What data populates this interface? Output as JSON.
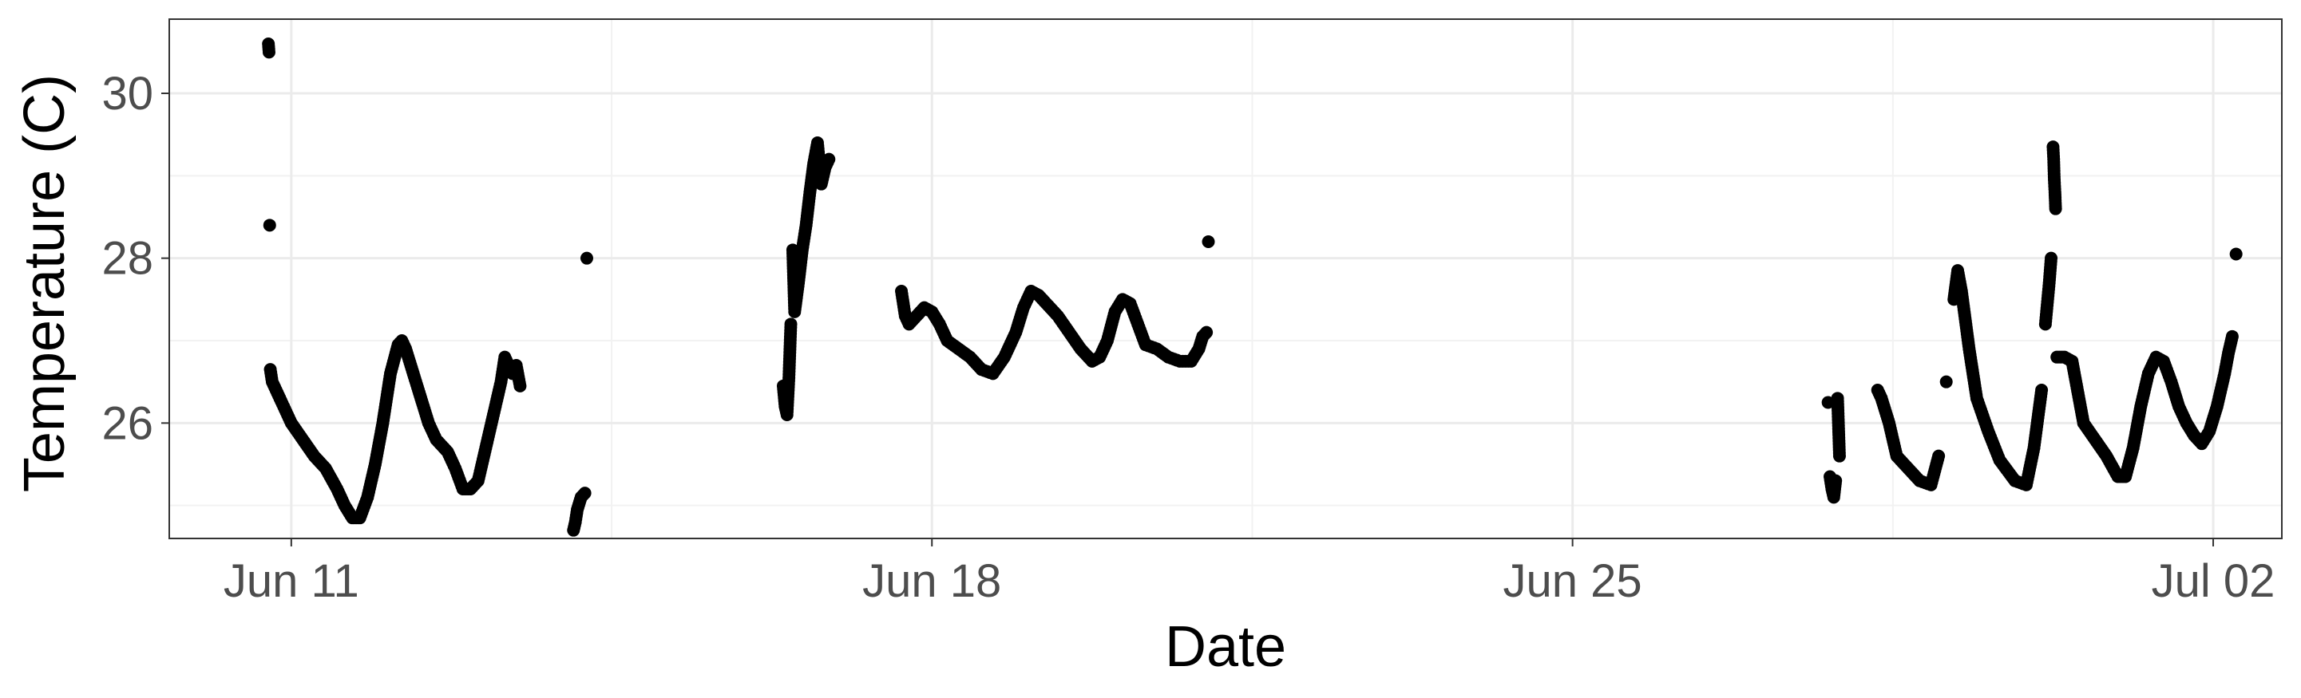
{
  "chart_data": {
    "type": "scatter",
    "title": "",
    "xlabel": "Date",
    "ylabel": "Temperature (C)",
    "x_ticks": [
      {
        "date": "2023-06-11",
        "label": "Jun 11"
      },
      {
        "date": "2023-06-18",
        "label": "Jun 18"
      },
      {
        "date": "2023-06-25",
        "label": "Jun 25"
      },
      {
        "date": "2023-07-02",
        "label": "Jul 02"
      }
    ],
    "y_ticks": [
      26,
      28,
      30
    ],
    "xlim": [
      "2023-06-09T16:00",
      "2023-07-02T18:00"
    ],
    "ylim": [
      24.6,
      30.9
    ],
    "grid": true,
    "legend": "none",
    "point_color": "#000000",
    "series": [
      {
        "points": [
          [
            "2023-06-10T18:00",
            30.6
          ],
          [
            "2023-06-10T18:10",
            30.5
          ],
          [
            "2023-06-10T18:20",
            28.4
          ],
          [
            "2023-06-10T18:30",
            26.65
          ],
          [
            "2023-06-10T19:00",
            26.5
          ],
          [
            "2023-06-10T20:00",
            26.4
          ],
          [
            "2023-06-10T22:00",
            26.2
          ],
          [
            "2023-06-11T00:00",
            26.0
          ],
          [
            "2023-06-11T03:00",
            25.8
          ],
          [
            "2023-06-11T06:00",
            25.6
          ],
          [
            "2023-06-11T09:00",
            25.45
          ],
          [
            "2023-06-11T12:00",
            25.2
          ],
          [
            "2023-06-11T14:00",
            25.0
          ],
          [
            "2023-06-11T16:00",
            24.85
          ],
          [
            "2023-06-11T18:00",
            24.85
          ],
          [
            "2023-06-11T20:00",
            25.1
          ],
          [
            "2023-06-11T22:00",
            25.5
          ],
          [
            "2023-06-12T00:00",
            26.0
          ],
          [
            "2023-06-12T02:00",
            26.6
          ],
          [
            "2023-06-12T04:00",
            26.95
          ],
          [
            "2023-06-12T05:00",
            27.0
          ],
          [
            "2023-06-12T06:00",
            26.9
          ],
          [
            "2023-06-12T08:00",
            26.6
          ],
          [
            "2023-06-12T10:00",
            26.3
          ],
          [
            "2023-06-12T12:00",
            26.0
          ],
          [
            "2023-06-12T14:00",
            25.8
          ],
          [
            "2023-06-12T17:00",
            25.65
          ],
          [
            "2023-06-12T19:00",
            25.45
          ],
          [
            "2023-06-12T21:00",
            25.2
          ],
          [
            "2023-06-12T23:00",
            25.2
          ],
          [
            "2023-06-13T01:00",
            25.3
          ],
          [
            "2023-06-13T03:00",
            25.7
          ],
          [
            "2023-06-13T05:00",
            26.1
          ],
          [
            "2023-06-13T07:00",
            26.5
          ],
          [
            "2023-06-13T08:00",
            26.8
          ],
          [
            "2023-06-13T09:00",
            26.7
          ],
          [
            "2023-06-13T10:00",
            26.6
          ],
          [
            "2023-06-13T11:00",
            26.7
          ],
          [
            "2023-06-13T12:00",
            26.45
          ],
          [
            "2023-06-14T02:00",
            24.7
          ],
          [
            "2023-06-14T02:30",
            24.8
          ],
          [
            "2023-06-14T03:00",
            24.95
          ],
          [
            "2023-06-14T04:00",
            25.1
          ],
          [
            "2023-06-14T05:00",
            25.15
          ],
          [
            "2023-06-14T05:30",
            28.0
          ],
          [
            "2023-06-16T09:00",
            26.45
          ],
          [
            "2023-06-16T09:30",
            26.2
          ],
          [
            "2023-06-16T10:00",
            26.1
          ],
          [
            "2023-06-16T10:30",
            26.55
          ],
          [
            "2023-06-16T11:00",
            27.2
          ],
          [
            "2023-06-16T11:30",
            28.1
          ],
          [
            "2023-06-16T12:00",
            27.35
          ],
          [
            "2023-06-16T13:00",
            27.7
          ],
          [
            "2023-06-16T14:00",
            28.1
          ],
          [
            "2023-06-16T15:00",
            28.4
          ],
          [
            "2023-06-16T16:00",
            28.8
          ],
          [
            "2023-06-16T17:00",
            29.15
          ],
          [
            "2023-06-16T18:00",
            29.4
          ],
          [
            "2023-06-16T19:00",
            28.9
          ],
          [
            "2023-06-16T20:00",
            29.1
          ],
          [
            "2023-06-16T21:00",
            29.2
          ],
          [
            "2023-06-17T16:00",
            27.6
          ],
          [
            "2023-06-17T17:00",
            27.3
          ],
          [
            "2023-06-17T18:00",
            27.2
          ],
          [
            "2023-06-17T20:00",
            27.3
          ],
          [
            "2023-06-17T22:00",
            27.4
          ],
          [
            "2023-06-18T00:00",
            27.35
          ],
          [
            "2023-06-18T02:00",
            27.2
          ],
          [
            "2023-06-18T04:00",
            27.0
          ],
          [
            "2023-06-18T07:00",
            26.9
          ],
          [
            "2023-06-18T10:00",
            26.8
          ],
          [
            "2023-06-18T13:00",
            26.65
          ],
          [
            "2023-06-18T16:00",
            26.6
          ],
          [
            "2023-06-18T19:00",
            26.8
          ],
          [
            "2023-06-18T22:00",
            27.1
          ],
          [
            "2023-06-19T00:00",
            27.4
          ],
          [
            "2023-06-19T02:00",
            27.6
          ],
          [
            "2023-06-19T04:00",
            27.55
          ],
          [
            "2023-06-19T06:00",
            27.45
          ],
          [
            "2023-06-19T09:00",
            27.3
          ],
          [
            "2023-06-19T12:00",
            27.1
          ],
          [
            "2023-06-19T15:00",
            26.9
          ],
          [
            "2023-06-19T18:00",
            26.75
          ],
          [
            "2023-06-19T20:00",
            26.8
          ],
          [
            "2023-06-19T22:00",
            27.0
          ],
          [
            "2023-06-20T00:00",
            27.35
          ],
          [
            "2023-06-20T02:00",
            27.5
          ],
          [
            "2023-06-20T04:00",
            27.45
          ],
          [
            "2023-06-20T06:00",
            27.2
          ],
          [
            "2023-06-20T08:00",
            26.95
          ],
          [
            "2023-06-20T11:00",
            26.9
          ],
          [
            "2023-06-20T14:00",
            26.8
          ],
          [
            "2023-06-20T17:00",
            26.75
          ],
          [
            "2023-06-20T20:00",
            26.75
          ],
          [
            "2023-06-20T22:00",
            26.9
          ],
          [
            "2023-06-20T23:00",
            27.05
          ],
          [
            "2023-06-21T00:00",
            27.1
          ],
          [
            "2023-06-21T00:30",
            28.2
          ],
          [
            "2023-06-27T19:00",
            26.25
          ],
          [
            "2023-06-27T19:30",
            25.35
          ],
          [
            "2023-06-27T20:00",
            25.2
          ],
          [
            "2023-06-27T20:30",
            25.1
          ],
          [
            "2023-06-27T21:00",
            25.3
          ],
          [
            "2023-06-27T21:30",
            26.3
          ],
          [
            "2023-06-27T22:00",
            25.6
          ],
          [
            "2023-06-28T08:00",
            26.4
          ],
          [
            "2023-06-28T09:00",
            26.3
          ],
          [
            "2023-06-28T11:00",
            26.0
          ],
          [
            "2023-06-28T13:00",
            25.6
          ],
          [
            "2023-06-28T16:00",
            25.45
          ],
          [
            "2023-06-28T19:00",
            25.3
          ],
          [
            "2023-06-28T22:00",
            25.25
          ],
          [
            "2023-06-29T00:00",
            25.6
          ],
          [
            "2023-06-29T02:00",
            26.5
          ],
          [
            "2023-06-29T04:00",
            27.5
          ],
          [
            "2023-06-29T05:00",
            27.85
          ],
          [
            "2023-06-29T06:00",
            27.6
          ],
          [
            "2023-06-29T08:00",
            26.9
          ],
          [
            "2023-06-29T10:00",
            26.3
          ],
          [
            "2023-06-29T13:00",
            25.9
          ],
          [
            "2023-06-29T16:00",
            25.55
          ],
          [
            "2023-06-29T20:00",
            25.3
          ],
          [
            "2023-06-29T23:00",
            25.25
          ],
          [
            "2023-06-30T01:00",
            25.7
          ],
          [
            "2023-06-30T03:00",
            26.4
          ],
          [
            "2023-06-30T04:00",
            27.2
          ],
          [
            "2023-06-30T05:00",
            27.7
          ],
          [
            "2023-06-30T05:30",
            28.0
          ],
          [
            "2023-06-30T06:00",
            29.35
          ],
          [
            "2023-06-30T06:10",
            29.2
          ],
          [
            "2023-06-30T06:20",
            28.95
          ],
          [
            "2023-06-30T06:30",
            28.8
          ],
          [
            "2023-06-30T06:40",
            28.6
          ],
          [
            "2023-06-30T07:00",
            26.8
          ],
          [
            "2023-06-30T09:00",
            26.8
          ],
          [
            "2023-06-30T11:00",
            26.75
          ],
          [
            "2023-06-30T12:00",
            26.5
          ],
          [
            "2023-06-30T14:00",
            26.0
          ],
          [
            "2023-06-30T17:00",
            25.8
          ],
          [
            "2023-06-30T20:00",
            25.6
          ],
          [
            "2023-06-30T23:00",
            25.35
          ],
          [
            "2023-07-01T01:00",
            25.35
          ],
          [
            "2023-07-01T03:00",
            25.7
          ],
          [
            "2023-07-01T05:00",
            26.2
          ],
          [
            "2023-07-01T07:00",
            26.6
          ],
          [
            "2023-07-01T09:00",
            26.8
          ],
          [
            "2023-07-01T11:00",
            26.75
          ],
          [
            "2023-07-01T13:00",
            26.5
          ],
          [
            "2023-07-01T15:00",
            26.2
          ],
          [
            "2023-07-01T17:00",
            26.0
          ],
          [
            "2023-07-01T19:00",
            25.85
          ],
          [
            "2023-07-01T21:00",
            25.75
          ],
          [
            "2023-07-01T23:00",
            25.9
          ],
          [
            "2023-07-02T01:00",
            26.2
          ],
          [
            "2023-07-02T03:00",
            26.6
          ],
          [
            "2023-07-02T04:00",
            26.85
          ],
          [
            "2023-07-02T05:00",
            27.05
          ],
          [
            "2023-07-02T06:00",
            28.05
          ]
        ]
      }
    ]
  }
}
